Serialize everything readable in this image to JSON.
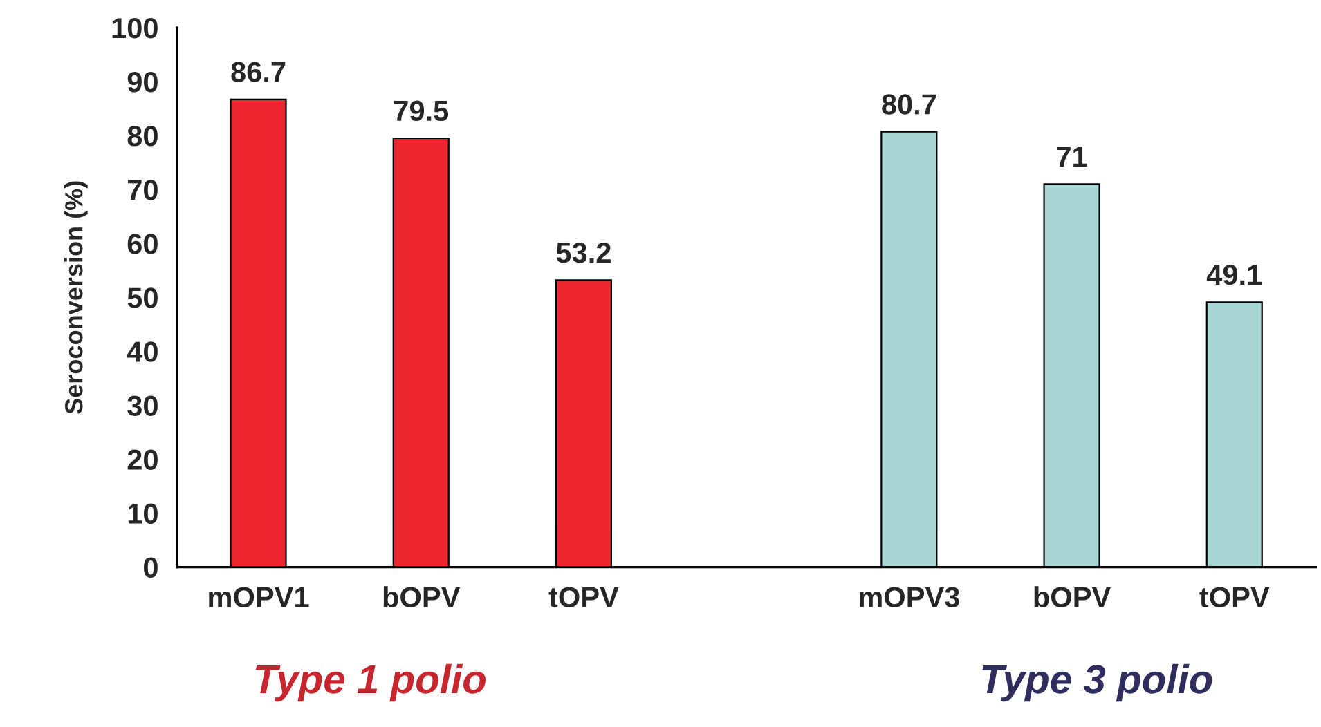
{
  "chart_data": {
    "type": "bar",
    "ylabel": "Seroconversion (%)",
    "categories": [
      "mOPV1",
      "bOPV",
      "tOPV",
      null,
      "mOPV3",
      "bOPV",
      "tOPV"
    ],
    "values": [
      86.7,
      79.5,
      53.2,
      null,
      80.7,
      71,
      49.1
    ],
    "colors": [
      "#ee2630",
      "#ee2630",
      "#ee2630",
      null,
      "#a9d7d6",
      "#a9d7d6",
      "#a9d7d6"
    ],
    "ylim": [
      0,
      100
    ],
    "yticks": [
      0,
      10,
      20,
      30,
      40,
      50,
      60,
      70,
      80,
      90,
      100
    ],
    "data_labels": true,
    "grid": false,
    "legend": false,
    "annotations": [
      "Type 1 polio",
      "Type 3 polio"
    ]
  }
}
